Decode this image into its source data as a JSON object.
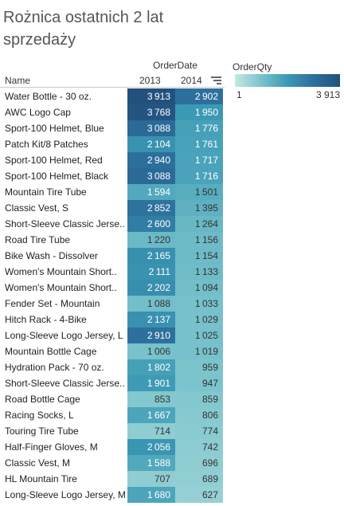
{
  "title": "Rożnica ostatnich 2 lat sprzedaży",
  "chart_data": {
    "type": "table",
    "title": "Rożnica ostatnich 2 lat sprzedaży",
    "column_dimension": "OrderDate",
    "row_dimension": "Name",
    "measure": "OrderQty",
    "columns": [
      "2013",
      "2014"
    ],
    "sorted_by": "2014",
    "color_range": [
      1,
      3913
    ],
    "rows": [
      {
        "name": "Water Bottle - 30 oz.",
        "values": [
          3913,
          2902
        ]
      },
      {
        "name": "AWC Logo Cap",
        "values": [
          3768,
          1950
        ]
      },
      {
        "name": "Sport-100 Helmet, Blue",
        "values": [
          3088,
          1776
        ]
      },
      {
        "name": "Patch Kit/8 Patches",
        "values": [
          2104,
          1761
        ]
      },
      {
        "name": "Sport-100 Helmet, Red",
        "values": [
          2940,
          1717
        ]
      },
      {
        "name": "Sport-100 Helmet, Black",
        "values": [
          3088,
          1716
        ]
      },
      {
        "name": "Mountain Tire Tube",
        "values": [
          1594,
          1501
        ]
      },
      {
        "name": "Classic Vest, S",
        "values": [
          2852,
          1395
        ]
      },
      {
        "name": "Short-Sleeve Classic Jerse..",
        "values": [
          2600,
          1264
        ]
      },
      {
        "name": "Road Tire Tube",
        "values": [
          1220,
          1156
        ]
      },
      {
        "name": "Bike Wash - Dissolver",
        "values": [
          2165,
          1154
        ]
      },
      {
        "name": "Women's Mountain Short..",
        "values": [
          2111,
          1133
        ]
      },
      {
        "name": "Women's Mountain Short..",
        "values": [
          2202,
          1094
        ]
      },
      {
        "name": "Fender Set - Mountain",
        "values": [
          1088,
          1033
        ]
      },
      {
        "name": "Hitch Rack - 4-Bike",
        "values": [
          2137,
          1029
        ]
      },
      {
        "name": "Long-Sleeve Logo Jersey, L",
        "values": [
          2910,
          1025
        ]
      },
      {
        "name": "Mountain Bottle Cage",
        "values": [
          1006,
          1019
        ]
      },
      {
        "name": "Hydration Pack - 70 oz.",
        "values": [
          1802,
          959
        ]
      },
      {
        "name": "Short-Sleeve Classic Jerse..",
        "values": [
          1901,
          947
        ]
      },
      {
        "name": "Road Bottle Cage",
        "values": [
          853,
          859
        ]
      },
      {
        "name": "Racing Socks, L",
        "values": [
          1667,
          806
        ]
      },
      {
        "name": "Touring Tire Tube",
        "values": [
          714,
          774
        ]
      },
      {
        "name": "Half-Finger Gloves, M",
        "values": [
          2056,
          742
        ]
      },
      {
        "name": "Classic Vest, M",
        "values": [
          1588,
          696
        ]
      },
      {
        "name": "HL Mountain Tire",
        "values": [
          707,
          689
        ]
      },
      {
        "name": "Long-Sleeve Logo Jersey, M",
        "values": [
          1680,
          627
        ]
      }
    ]
  },
  "legend": {
    "title": "OrderQty",
    "min_label": "1",
    "max_label": "3 913"
  },
  "headers": {
    "dimension": "OrderDate",
    "row_label": "Name",
    "col1": "2013",
    "col2": "2014"
  },
  "icons": {
    "sort": "sort-descending-icon"
  }
}
